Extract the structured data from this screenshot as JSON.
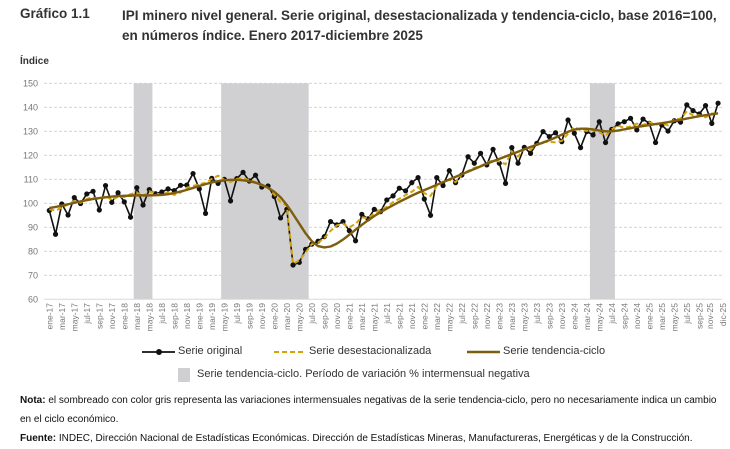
{
  "header": {
    "figure_number": "Gráfico 1.1",
    "title": "IPI minero nivel general. Serie original, desestacionalizada y tendencia-ciclo, base 2016=100, en números índice. Enero 2017-diciembre 2025"
  },
  "chart_data": {
    "type": "line",
    "title": "IPI minero nivel general. Serie original, desestacionalizada y tendencia-ciclo, base 2016=100, en números índice. Enero 2017-diciembre 2025",
    "ylabel": "Índice",
    "xlabel": "",
    "ylim": [
      60,
      150
    ],
    "yticks": [
      60,
      70,
      80,
      90,
      100,
      110,
      120,
      130,
      140,
      150
    ],
    "grid": true,
    "legend_position": "bottom",
    "categories": [
      "ene-17",
      "feb-17",
      "mar-17",
      "abr-17",
      "may-17",
      "jun-17",
      "jul-17",
      "ago-17",
      "sep-17",
      "oct-17",
      "nov-17",
      "dic-17",
      "ene-18",
      "feb-18",
      "mar-18",
      "abr-18",
      "may-18",
      "jun-18",
      "jul-18",
      "ago-18",
      "sep-18",
      "oct-18",
      "nov-18",
      "dic-18",
      "ene-19",
      "feb-19",
      "mar-19",
      "abr-19",
      "may-19",
      "jun-19",
      "jul-19",
      "ago-19",
      "sep-19",
      "oct-19",
      "nov-19",
      "dic-19",
      "ene-20",
      "feb-20",
      "mar-20",
      "abr-20",
      "may-20",
      "jun-20",
      "jul-20",
      "ago-20",
      "sep-20",
      "oct-20",
      "nov-20",
      "dic-20",
      "ene-21",
      "feb-21",
      "mar-21",
      "abr-21",
      "may-21",
      "jun-21",
      "jul-21",
      "ago-21",
      "sep-21",
      "oct-21",
      "nov-21",
      "dic-21",
      "ene-22",
      "feb-22",
      "mar-22",
      "abr-22",
      "may-22",
      "jun-22",
      "jul-22",
      "ago-22",
      "sep-22",
      "oct-22",
      "nov-22",
      "dic-22",
      "ene-23",
      "feb-23",
      "mar-23",
      "abr-23",
      "may-23",
      "jun-23",
      "jul-23",
      "ago-23",
      "sep-23",
      "oct-23",
      "nov-23",
      "dic-23",
      "ene-24",
      "feb-24",
      "mar-24",
      "abr-24",
      "may-24",
      "jun-24",
      "jul-24",
      "ago-24",
      "sep-24",
      "oct-24",
      "nov-24",
      "dic-24",
      "ene-25",
      "feb-25",
      "mar-25",
      "abr-25",
      "may-25",
      "jun-25",
      "jul-25",
      "ago-25",
      "sep-25",
      "oct-25",
      "nov-25",
      "dic-25"
    ],
    "tick_labels": [
      "ene-17",
      "mar-17",
      "may-17",
      "jul-17",
      "sep-17",
      "nov-17",
      "ene-18",
      "mar-18",
      "may-18",
      "jul-18",
      "sep-18",
      "nov-18",
      "ene-19",
      "mar-19",
      "may-19",
      "jul-19",
      "sep-19",
      "nov-19",
      "ene-20",
      "mar-20",
      "may-20",
      "jul-20",
      "sep-20",
      "nov-20",
      "ene-21",
      "mar-21",
      "may-21",
      "jul-21",
      "sep-21",
      "nov-21",
      "ene-22",
      "mar-22",
      "may-22",
      "jul-22",
      "sep-22",
      "nov-22",
      "ene-23",
      "mar-23",
      "may-23",
      "jul-23",
      "sep-23",
      "nov-23",
      "ene-24",
      "mar-24",
      "may-24",
      "jul-24",
      "sep-24",
      "nov-24",
      "ene-25",
      "mar-25",
      "may-25",
      "jul-25",
      "sep-25",
      "nov-25",
      "dic-25"
    ],
    "series": [
      {
        "name": "Serie original",
        "color": "#111111",
        "style": "line-marker",
        "values": [
          97,
          87.1,
          99.7,
          95.1,
          102.4,
          99.9,
          103.9,
          105,
          97.2,
          107.4,
          100.4,
          104.4,
          100.6,
          94.2,
          106.5,
          99.3,
          105.7,
          104,
          104.7,
          106,
          105.3,
          107.5,
          107.6,
          112.4,
          106,
          95.8,
          110.4,
          108.3,
          110,
          101,
          110.3,
          112.9,
          109.3,
          111.7,
          106.8,
          107.2,
          102.8,
          93.9,
          97.5,
          74.3,
          75.4,
          80.8,
          83,
          84.2,
          86.1,
          92.4,
          91,
          92.4,
          88.6,
          84.4,
          95.4,
          93.5,
          97.5,
          96.5,
          101.4,
          103.1,
          106.3,
          105.2,
          108.6,
          110.7,
          101.8,
          95,
          110.7,
          107.4,
          113.6,
          108.6,
          111.8,
          119.4,
          116.7,
          120.8,
          116,
          122.5,
          116.7,
          108.3,
          123.2,
          116.7,
          123.3,
          120.8,
          125,
          129.9,
          127.8,
          129.4,
          125.7,
          134.7,
          129.2,
          123.2,
          129.9,
          128.5,
          134,
          125.3,
          130.8,
          133.1,
          134,
          135.4,
          130.6,
          135.1,
          133.3,
          125.3,
          132.6,
          130.1,
          134.4,
          133.8,
          141,
          138.6,
          137.2,
          140.7,
          133.3,
          141.7
        ]
      },
      {
        "name": "Serie desestacionalizada",
        "color": "#D4A20A",
        "style": "dashed",
        "values": [
          97.5,
          97,
          98.2,
          99.5,
          101,
          100.2,
          101.8,
          102.5,
          101.5,
          103.2,
          101.3,
          102.8,
          102.6,
          103.8,
          104.5,
          102.8,
          105,
          104.2,
          103.4,
          104.6,
          103.5,
          104.5,
          106.5,
          107.2,
          108,
          108.5,
          110.2,
          111.5,
          109.8,
          108.8,
          110.2,
          110.5,
          109.6,
          108.8,
          107.5,
          106.4,
          103.6,
          100.5,
          99,
          74.8,
          76.2,
          79.5,
          83,
          83.6,
          85.5,
          88.5,
          90.8,
          91.5,
          90,
          91.4,
          94.2,
          93.8,
          95.8,
          97.4,
          98.5,
          100.5,
          101.9,
          103.4,
          104.8,
          106.8,
          104.2,
          103.1,
          107.3,
          109,
          109.8,
          108.8,
          112,
          113.5,
          114.8,
          115.6,
          116.8,
          118,
          117.4,
          116.3,
          121.6,
          119.5,
          122.6,
          122.3,
          124.6,
          125.6,
          125.6,
          125.4,
          126,
          129,
          131.8,
          130.5,
          130.2,
          130.5,
          129.5,
          128.2,
          130.8,
          132.4,
          131.4,
          132,
          133.2,
          132.6,
          133.8,
          132.7,
          133.4,
          132.5,
          134.9,
          135.3,
          138.3,
          136.6,
          136.7,
          135.8,
          137.4,
          137.4
        ]
      },
      {
        "name": "Serie tendencia-ciclo",
        "color": "#7D5E10",
        "style": "solid",
        "values": [
          98,
          98.5,
          99,
          99.6,
          100.2,
          100.8,
          101.3,
          101.8,
          102.2,
          102.5,
          102.8,
          103,
          103.1,
          103.2,
          103.3,
          103.3,
          103.3,
          103.4,
          103.5,
          103.8,
          104.3,
          104.9,
          105.6,
          106.4,
          107.2,
          108,
          108.7,
          109.2,
          109.6,
          109.8,
          109.8,
          109.6,
          109.2,
          108.6,
          107.7,
          106.5,
          104.8,
          102.5,
          99.3,
          95.5,
          91.5,
          87.5,
          84.2,
          82.2,
          81.6,
          82,
          83.2,
          84.9,
          86.9,
          89,
          91,
          92.9,
          94.7,
          96.3,
          97.8,
          99.2,
          100.6,
          101.9,
          103.2,
          104.4,
          105.5,
          106.6,
          107.7,
          108.8,
          109.9,
          111,
          112.1,
          113.2,
          114.3,
          115.4,
          116.5,
          117.5,
          118.5,
          119.5,
          120.5,
          121.5,
          122.5,
          123.5,
          124.4,
          125.3,
          126.3,
          127.4,
          128.6,
          129.8,
          130.7,
          131.1,
          131.1,
          130.8,
          130.3,
          130,
          130,
          130.3,
          130.8,
          131.3,
          131.8,
          132.2,
          132.6,
          133,
          133.4,
          133.8,
          134.3,
          134.8,
          135.3,
          135.8,
          136.3,
          136.7,
          137.1,
          137.5
        ]
      }
    ],
    "shaded_periods": [
      {
        "from": "mar-18",
        "to": "jun-18"
      },
      {
        "from": "may-19",
        "to": "jul-20"
      },
      {
        "from": "abr-24",
        "to": "ago-24"
      }
    ],
    "shade_color": "#D0CFD1",
    "shade_legend": "Serie tendencia-ciclo. Período de variación % intermensual negativa"
  },
  "notes": {
    "nota_label": "Nota:",
    "nota_text": " el sombreado con color gris representa las variaciones intermensuales negativas de la serie tendencia-ciclo, pero no necesariamente indica un cambio en el ciclo económico.",
    "fuente_label": "Fuente:",
    "fuente_text": " INDEC, Dirección Nacional de Estadísticas Económicas. Dirección de Estadísticas Mineras, Manufactureras, Energéticas y de la Construcción."
  }
}
